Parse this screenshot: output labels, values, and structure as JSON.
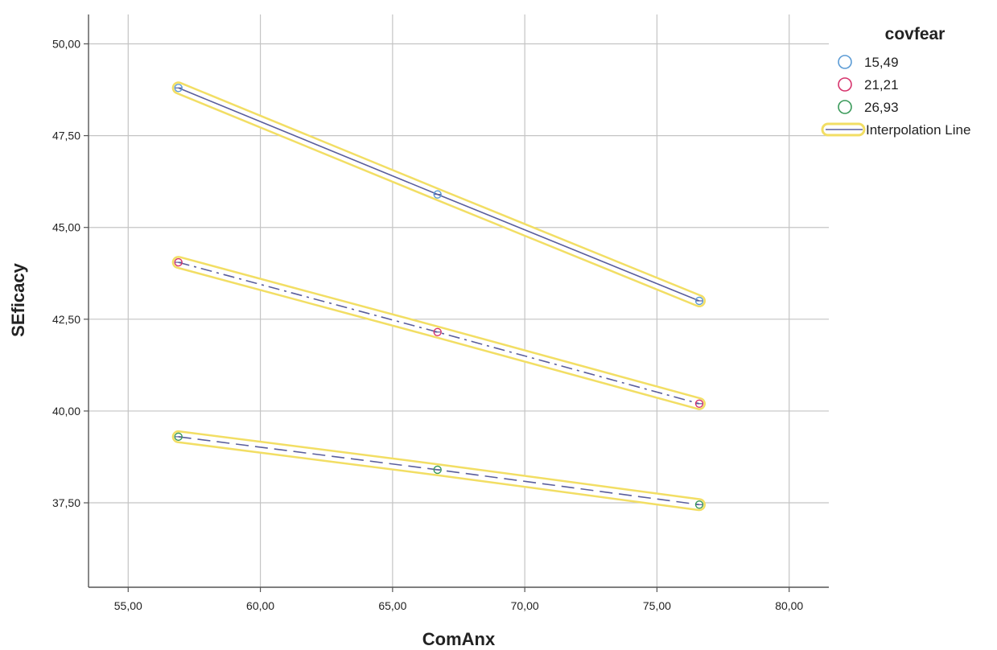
{
  "chart_data": {
    "type": "line",
    "xlabel": "ComAnx",
    "ylabel": "SEficacy",
    "xlim": [
      53.5,
      81.5
    ],
    "ylim": [
      35.2,
      50.8
    ],
    "x_ticks": [
      55,
      60,
      65,
      70,
      75,
      80
    ],
    "x_tick_labels": [
      "55,00",
      "60,00",
      "65,00",
      "70,00",
      "75,00",
      "80,00"
    ],
    "y_ticks": [
      37.5,
      40,
      42.5,
      45,
      47.5,
      50
    ],
    "y_tick_labels": [
      "37,50",
      "40,00",
      "42,50",
      "45,00",
      "47,50",
      "50,00"
    ],
    "grid": true,
    "x": [
      56.9,
      66.7,
      76.6
    ],
    "series": [
      {
        "name": "15,49",
        "marker_color": "#5b9bd5",
        "line_style": "solid",
        "values": [
          48.8,
          45.9,
          43.0
        ]
      },
      {
        "name": "21,21",
        "marker_color": "#d6336c",
        "line_style": "dash-dot",
        "values": [
          44.05,
          42.15,
          40.2
        ]
      },
      {
        "name": "26,93",
        "marker_color": "#3a9a5a",
        "line_style": "dashed",
        "values": [
          39.3,
          38.4,
          37.45
        ]
      }
    ],
    "line_color": "#5a5e9c",
    "highlight_color": "#f2de64",
    "legend": {
      "title": "covfear",
      "placement": "right",
      "interpolation_label": "Interpolation Line"
    }
  }
}
